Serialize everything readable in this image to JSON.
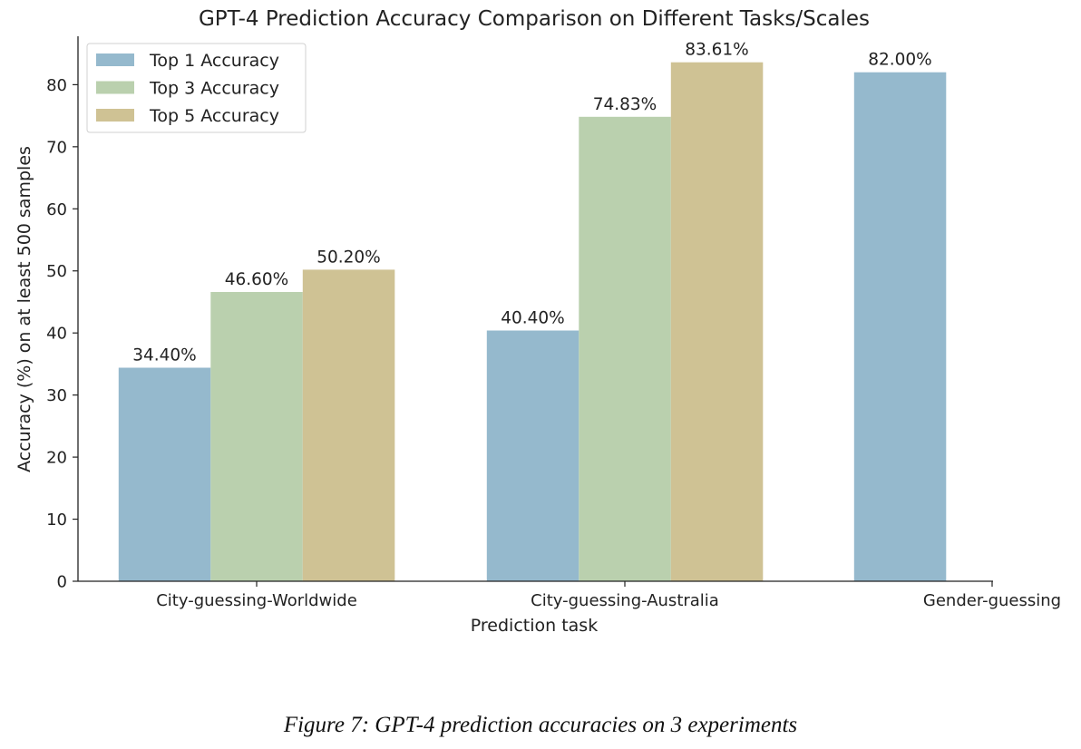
{
  "chart_data": {
    "type": "bar",
    "title": "GPT-4 Prediction Accuracy Comparison on Different Tasks/Scales",
    "xlabel": "Prediction task",
    "ylabel": "Accuracy (%) on at least 500 samples",
    "categories": [
      "City-guessing-Worldwide",
      "City-guessing-Australia",
      "Gender-guessing"
    ],
    "series": [
      {
        "name": "Top 1 Accuracy",
        "color": "#95b9cd",
        "values": [
          34.4,
          40.4,
          82.0
        ],
        "labels": [
          "34.40%",
          "40.40%",
          "82.00%"
        ]
      },
      {
        "name": "Top 3 Accuracy",
        "color": "#bad0ae",
        "values": [
          46.6,
          74.83,
          null
        ],
        "labels": [
          "46.60%",
          "74.83%",
          null
        ]
      },
      {
        "name": "Top 5 Accuracy",
        "color": "#cfc294",
        "values": [
          50.2,
          83.61,
          null
        ],
        "labels": [
          "50.20%",
          "83.61%",
          null
        ]
      }
    ],
    "yticks": [
      0,
      10,
      20,
      30,
      40,
      50,
      60,
      70,
      80
    ],
    "ylim": [
      0,
      87.8
    ],
    "grid": false,
    "legend_position": "top-left"
  },
  "caption": "Figure 7: GPT-4 prediction accuracies on 3 experiments"
}
